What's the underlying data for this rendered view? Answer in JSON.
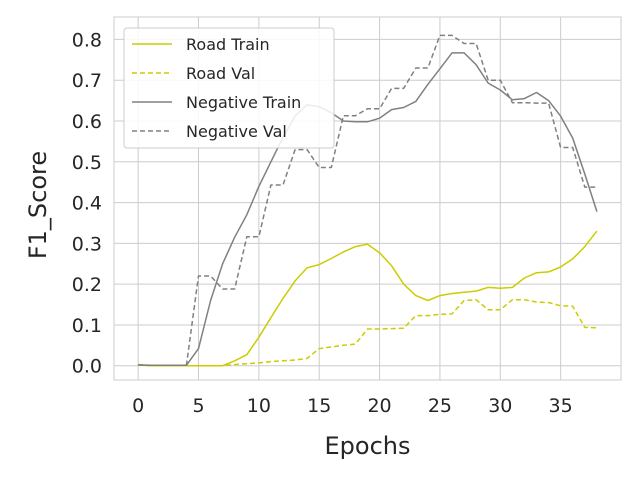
{
  "chart_data": {
    "type": "line",
    "title": "",
    "xlabel": "Epochs",
    "ylabel": "F1_Score",
    "xlim": [
      -2,
      40
    ],
    "ylim": [
      -0.035,
      0.855
    ],
    "xticks": [
      0,
      5,
      10,
      15,
      20,
      25,
      30,
      35
    ],
    "yticks": [
      0.0,
      0.1,
      0.2,
      0.3,
      0.4,
      0.5,
      0.6,
      0.7,
      0.8
    ],
    "xtick_labels": [
      "0",
      "5",
      "10",
      "15",
      "20",
      "25",
      "30",
      "35"
    ],
    "ytick_labels": [
      "0.0",
      "0.1",
      "0.2",
      "0.3",
      "0.4",
      "0.5",
      "0.6",
      "0.7",
      "0.8"
    ],
    "grid": true,
    "legend_position": "upper left",
    "x": [
      0,
      1,
      2,
      3,
      4,
      5,
      6,
      7,
      8,
      9,
      10,
      11,
      12,
      13,
      14,
      15,
      16,
      17,
      18,
      19,
      20,
      21,
      22,
      23,
      24,
      25,
      26,
      27,
      28,
      29,
      30,
      31,
      32,
      33,
      34,
      35,
      36,
      37,
      38
    ],
    "series": [
      {
        "name": "Road Train",
        "color": "#cccc00",
        "dashed": false,
        "values": [
          0.003,
          0.0,
          0.0,
          0.0,
          0.0,
          0.0,
          0.0,
          0.0,
          0.012,
          0.027,
          0.07,
          0.118,
          0.165,
          0.208,
          0.24,
          0.248,
          0.263,
          0.279,
          0.292,
          0.298,
          0.277,
          0.245,
          0.2,
          0.172,
          0.16,
          0.172,
          0.177,
          0.18,
          0.183,
          0.192,
          0.19,
          0.192,
          0.215,
          0.228,
          0.23,
          0.242,
          0.262,
          0.292,
          0.33
        ]
      },
      {
        "name": "Road Val",
        "color": "#cccc00",
        "dashed": true,
        "values": [
          0.002,
          0.0,
          0.0,
          0.0,
          0.0,
          0.0,
          0.0,
          0.0,
          0.003,
          0.005,
          0.007,
          0.01,
          0.012,
          0.014,
          0.018,
          0.042,
          0.046,
          0.05,
          0.053,
          0.09,
          0.09,
          0.091,
          0.092,
          0.123,
          0.123,
          0.126,
          0.127,
          0.16,
          0.162,
          0.137,
          0.137,
          0.162,
          0.162,
          0.156,
          0.155,
          0.147,
          0.146,
          0.094,
          0.093
        ]
      },
      {
        "name": "Negative Train",
        "color": "#808080",
        "dashed": false,
        "values": [
          0.002,
          0.001,
          0.001,
          0.001,
          0.001,
          0.042,
          0.16,
          0.25,
          0.315,
          0.37,
          0.44,
          0.5,
          0.56,
          0.612,
          0.64,
          0.635,
          0.62,
          0.6,
          0.598,
          0.598,
          0.607,
          0.628,
          0.633,
          0.648,
          0.69,
          0.728,
          0.767,
          0.767,
          0.738,
          0.693,
          0.676,
          0.652,
          0.655,
          0.67,
          0.65,
          0.612,
          0.558,
          0.47,
          0.378
        ]
      },
      {
        "name": "Negative Val",
        "color": "#808080",
        "dashed": true,
        "values": [
          0.002,
          0.001,
          0.001,
          0.001,
          0.001,
          0.22,
          0.22,
          0.188,
          0.188,
          0.316,
          0.316,
          0.443,
          0.443,
          0.53,
          0.53,
          0.486,
          0.486,
          0.613,
          0.613,
          0.63,
          0.63,
          0.68,
          0.68,
          0.73,
          0.73,
          0.81,
          0.81,
          0.79,
          0.79,
          0.7,
          0.7,
          0.645,
          0.645,
          0.644,
          0.644,
          0.535,
          0.535,
          0.438,
          0.438
        ]
      }
    ]
  }
}
